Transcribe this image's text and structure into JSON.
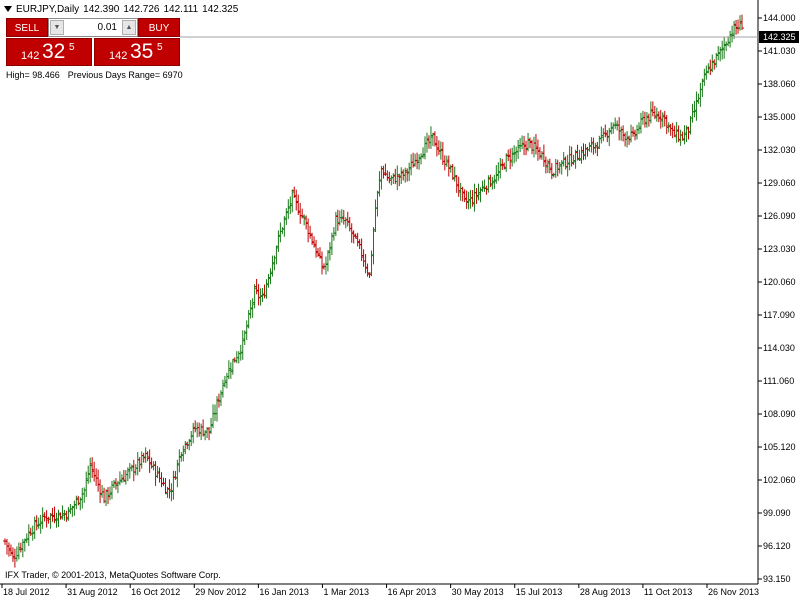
{
  "header": {
    "symbol": "EURJPY,Daily",
    "open": "142.390",
    "high": "142.726",
    "low": "142.111",
    "close": "142.325"
  },
  "trade_panel": {
    "sell_label": "SELL",
    "buy_label": "BUY",
    "lot_value": "0.01",
    "sell_price": {
      "small": "142",
      "big": "32",
      "sup": "5"
    },
    "buy_price": {
      "small": "142",
      "big": "35",
      "sup": "5"
    }
  },
  "info": {
    "high_text": "High= 98.466",
    "range_text": "Previous Days Range= 6970"
  },
  "footer": {
    "copyright": "IFX Trader, © 2001-2013, MetaQuotes Software Corp."
  },
  "colors": {
    "background": "#ffffff",
    "bull_bar": "#1a7a1a",
    "bear_bar": "#c00000",
    "current_price_line": "#a0a0a0",
    "current_price_label_bg": "#000000",
    "trade_button": "#c00000"
  },
  "chart_data": {
    "type": "ohlc",
    "title": "EURJPY,Daily",
    "current_price": "142.325",
    "y_ticks": [
      "144.000",
      "141.030",
      "138.060",
      "135.000",
      "132.030",
      "129.060",
      "126.090",
      "123.030",
      "120.060",
      "117.090",
      "114.030",
      "111.060",
      "108.090",
      "105.120",
      "102.060",
      "99.090",
      "96.120",
      "93.150"
    ],
    "x_ticks": [
      "18 Jul 2012",
      "31 Aug 2012",
      "16 Oct 2012",
      "29 Nov 2012",
      "16 Jan 2013",
      "1 Mar 2013",
      "16 Apr 2013",
      "30 May 2013",
      "15 Jul 2013",
      "28 Aug 2013",
      "11 Oct 2013",
      "26 Nov 2013"
    ],
    "ylim": [
      93.15,
      144.0
    ],
    "anchors": [
      [
        "2012-07-18",
        96.5
      ],
      [
        "2012-07-24",
        95.0
      ],
      [
        "2012-08-06",
        97.5
      ],
      [
        "2012-08-15",
        98.6
      ],
      [
        "2012-08-31",
        99.0
      ],
      [
        "2012-09-12",
        101.0
      ],
      [
        "2012-09-17",
        103.2
      ],
      [
        "2012-09-26",
        100.3
      ],
      [
        "2012-10-05",
        101.8
      ],
      [
        "2012-10-16",
        102.8
      ],
      [
        "2012-10-25",
        104.0
      ],
      [
        "2012-11-09",
        101.0
      ],
      [
        "2012-11-13",
        101.2
      ],
      [
        "2012-11-20",
        104.6
      ],
      [
        "2012-11-29",
        106.5
      ],
      [
        "2012-12-10",
        106.2
      ],
      [
        "2012-12-20",
        111.0
      ],
      [
        "2013-01-02",
        114.0
      ],
      [
        "2013-01-10",
        118.5
      ],
      [
        "2013-01-16",
        118.0
      ],
      [
        "2013-01-28",
        123.3
      ],
      [
        "2013-02-06",
        127.0
      ],
      [
        "2013-02-14",
        125.0
      ],
      [
        "2013-02-22",
        122.3
      ],
      [
        "2013-02-27",
        120.8
      ],
      [
        "2013-03-01",
        121.0
      ],
      [
        "2013-03-08",
        125.0
      ],
      [
        "2013-03-15",
        124.8
      ],
      [
        "2013-03-27",
        122.0
      ],
      [
        "2013-04-02",
        120.0
      ],
      [
        "2013-04-05",
        126.0
      ],
      [
        "2013-04-10",
        129.5
      ],
      [
        "2013-04-16",
        128.5
      ],
      [
        "2013-04-26",
        129.0
      ],
      [
        "2013-05-08",
        131.0
      ],
      [
        "2013-05-16",
        132.2
      ],
      [
        "2013-05-23",
        130.5
      ],
      [
        "2013-05-30",
        129.0
      ],
      [
        "2013-06-07",
        126.5
      ],
      [
        "2013-06-13",
        126.8
      ],
      [
        "2013-06-21",
        128.0
      ],
      [
        "2013-07-01",
        128.8
      ],
      [
        "2013-07-08",
        130.3
      ],
      [
        "2013-07-15",
        131.0
      ],
      [
        "2013-07-23",
        131.8
      ],
      [
        "2013-08-02",
        130.5
      ],
      [
        "2013-08-08",
        129.3
      ],
      [
        "2013-08-16",
        130.0
      ],
      [
        "2013-08-28",
        130.8
      ],
      [
        "2013-09-06",
        131.5
      ],
      [
        "2013-09-12",
        132.0
      ],
      [
        "2013-09-20",
        133.5
      ],
      [
        "2013-09-27",
        132.5
      ],
      [
        "2013-10-04",
        132.3
      ],
      [
        "2013-10-11",
        133.8
      ],
      [
        "2013-10-18",
        134.3
      ],
      [
        "2013-10-25",
        134.2
      ],
      [
        "2013-11-01",
        132.6
      ],
      [
        "2013-11-08",
        132.3
      ],
      [
        "2013-11-13",
        133.0
      ],
      [
        "2013-11-20",
        135.8
      ],
      [
        "2013-11-26",
        138.0
      ],
      [
        "2013-12-05",
        139.8
      ],
      [
        "2013-12-13",
        141.7
      ],
      [
        "2013-12-20",
        142.325
      ]
    ]
  }
}
